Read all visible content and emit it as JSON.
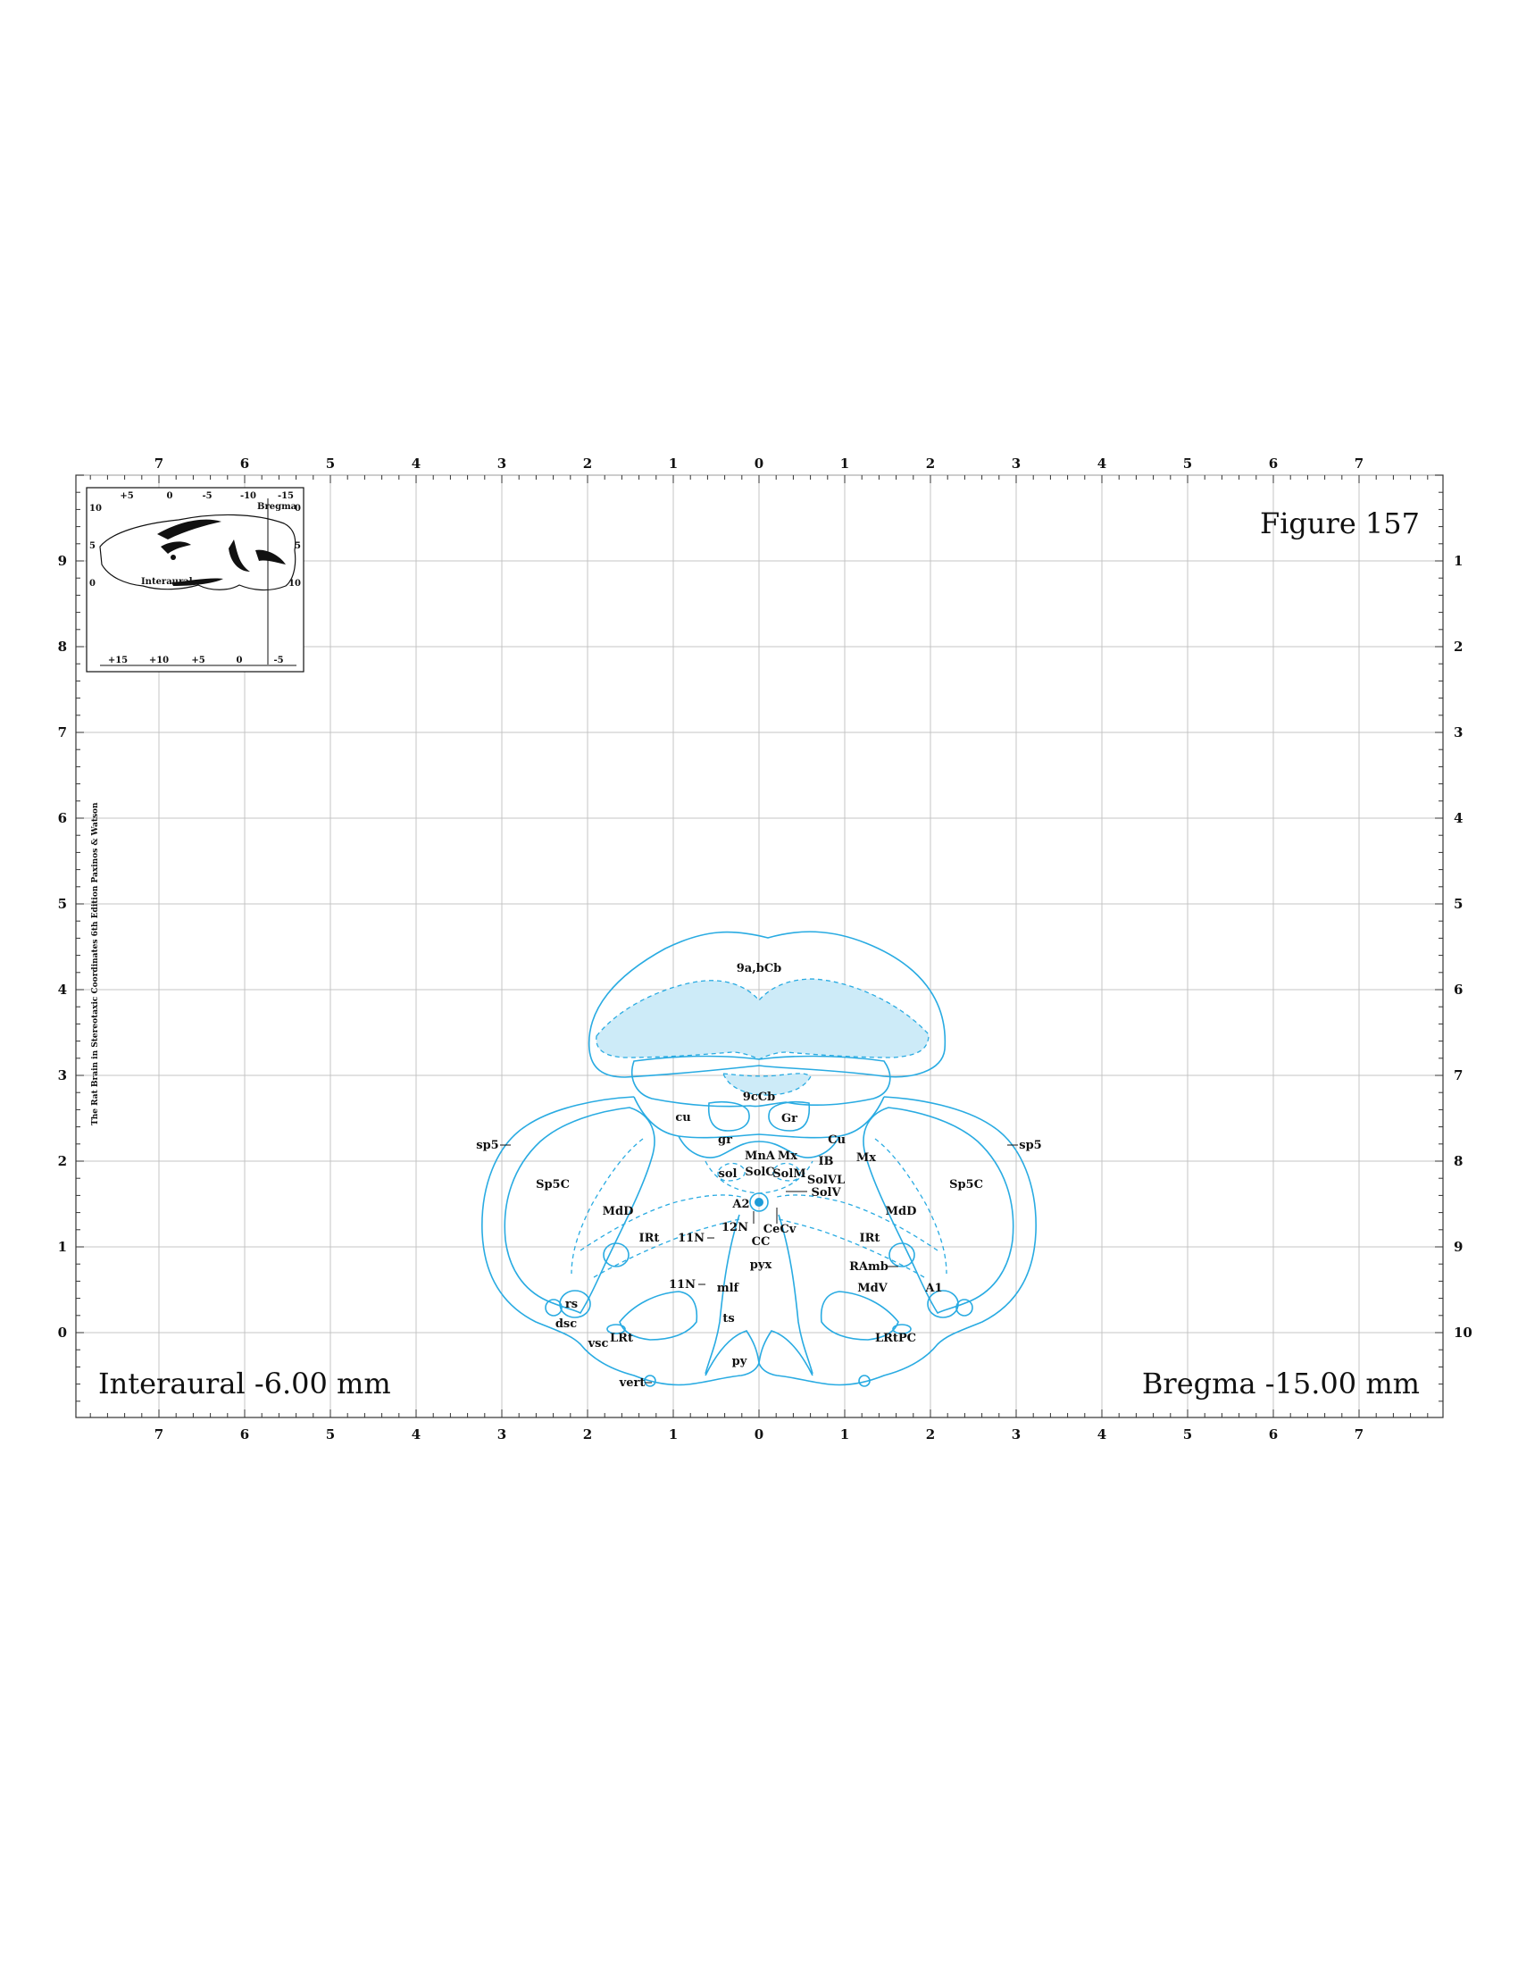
{
  "figure": {
    "title": "Figure 157",
    "interaural": "Interaural -6.00 mm",
    "bregma": "Bregma -15.00 mm",
    "credit": "The Rat Brain in Stereotaxic Coordinates 6th Edition Paxinos & Watson"
  },
  "axes": {
    "x_labels": [
      "7",
      "6",
      "5",
      "4",
      "3",
      "2",
      "1",
      "0",
      "1",
      "2",
      "3",
      "4",
      "5",
      "6",
      "7"
    ],
    "left_labels": [
      "9",
      "8",
      "7",
      "6",
      "5",
      "4",
      "3",
      "2",
      "1",
      "0"
    ],
    "right_labels": [
      "1",
      "2",
      "3",
      "4",
      "5",
      "6",
      "7",
      "8",
      "9",
      "10"
    ]
  },
  "inset": {
    "top": [
      "+5",
      "0",
      "-5",
      "-10",
      "-15"
    ],
    "bottom": [
      "+15",
      "+10",
      "+5",
      "0",
      "-5"
    ],
    "left": [
      "10",
      "5",
      "0"
    ],
    "right": [
      "0",
      "5",
      "10"
    ],
    "lbl_interaural": "Interaural",
    "lbl_bregma": "Bregma"
  },
  "regions": {
    "cb9ab": "9a,bCb",
    "cb9c": "9cCb",
    "cu": "cu",
    "gr_nucleus": "Gr",
    "gr_tract": "gr",
    "cu_nucleus": "Cu",
    "mna": "MnA",
    "mx_mid": "Mx",
    "mx_right": "Mx",
    "ib": "IB",
    "sol": "sol",
    "solc": "SolC",
    "solm": "SolM",
    "solvl": "SolVL",
    "solv": "SolV",
    "sp5_left": "sp5",
    "sp5_right": "sp5",
    "sp5c_left": "Sp5C",
    "sp5c_right": "Sp5C",
    "mdd_left": "MdD",
    "mdd_right": "MdD",
    "a2": "A2",
    "n12": "12N",
    "cecv": "CeCv",
    "cc": "CC",
    "irt_left": "IRt",
    "irt_right": "IRt",
    "n11_upper": "11N",
    "n11_lower": "11N",
    "pyx": "pyx",
    "ramb": "RAmb",
    "mlf": "mlf",
    "mdv": "MdV",
    "a1": "A1",
    "rs": "rs",
    "dsc": "dsc",
    "ts": "ts",
    "lrt": "LRt",
    "lrtpc": "LRtPC",
    "vsc": "vsc",
    "py": "py",
    "vert": "vert"
  },
  "colors": {
    "outline": "#29abe2",
    "fill": "#cdebf8",
    "canal": "#1e9bd7",
    "grid": "#c4c4c4"
  }
}
